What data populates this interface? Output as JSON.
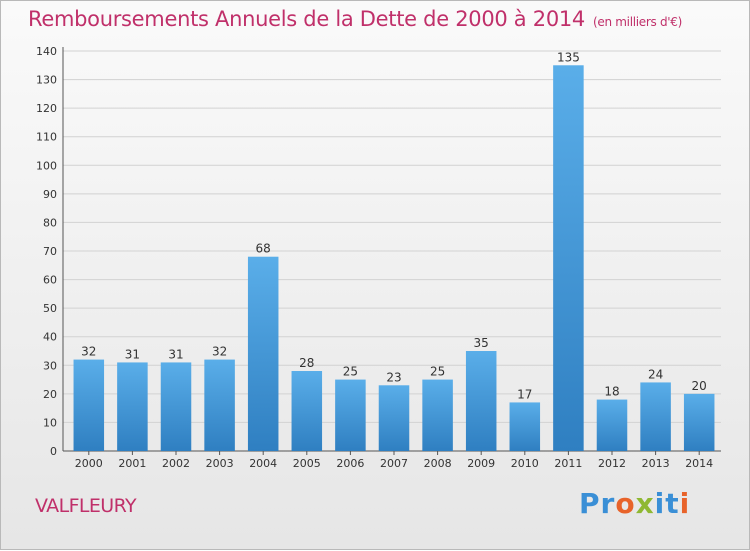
{
  "title": "Remboursements Annuels de la Dette de 2000 à 2014",
  "title_unit": "(en milliers d'€)",
  "commune": "VALFLEURY",
  "brand": {
    "text": "Proxiti",
    "letters": [
      {
        "ch": "P",
        "color": "#3a8fd6"
      },
      {
        "ch": "r",
        "color": "#3a8fd6"
      },
      {
        "ch": "o",
        "color": "#e8632a"
      },
      {
        "ch": "x",
        "color": "#8fb832"
      },
      {
        "ch": "i",
        "color": "#3a8fd6"
      },
      {
        "ch": "t",
        "color": "#3a8fd6"
      },
      {
        "ch": "i",
        "color": "#e8632a"
      }
    ]
  },
  "colors": {
    "title": "#c0306a",
    "bar_light": "#5aaee9",
    "bar_dark": "#2f7fc1"
  },
  "chart_data": {
    "type": "bar",
    "title": "Remboursements Annuels de la Dette de 2000 à 2014",
    "xlabel": "",
    "ylabel": "",
    "ylim": [
      0,
      140
    ],
    "yticks": [
      0,
      10,
      20,
      30,
      40,
      50,
      60,
      70,
      80,
      90,
      100,
      110,
      120,
      130,
      140
    ],
    "grid": true,
    "categories": [
      "2000",
      "2001",
      "2002",
      "2003",
      "2004",
      "2005",
      "2006",
      "2007",
      "2008",
      "2009",
      "2010",
      "2011",
      "2012",
      "2013",
      "2014"
    ],
    "values": [
      32,
      31,
      31,
      32,
      68,
      28,
      25,
      23,
      25,
      35,
      17,
      135,
      18,
      24,
      20
    ]
  }
}
